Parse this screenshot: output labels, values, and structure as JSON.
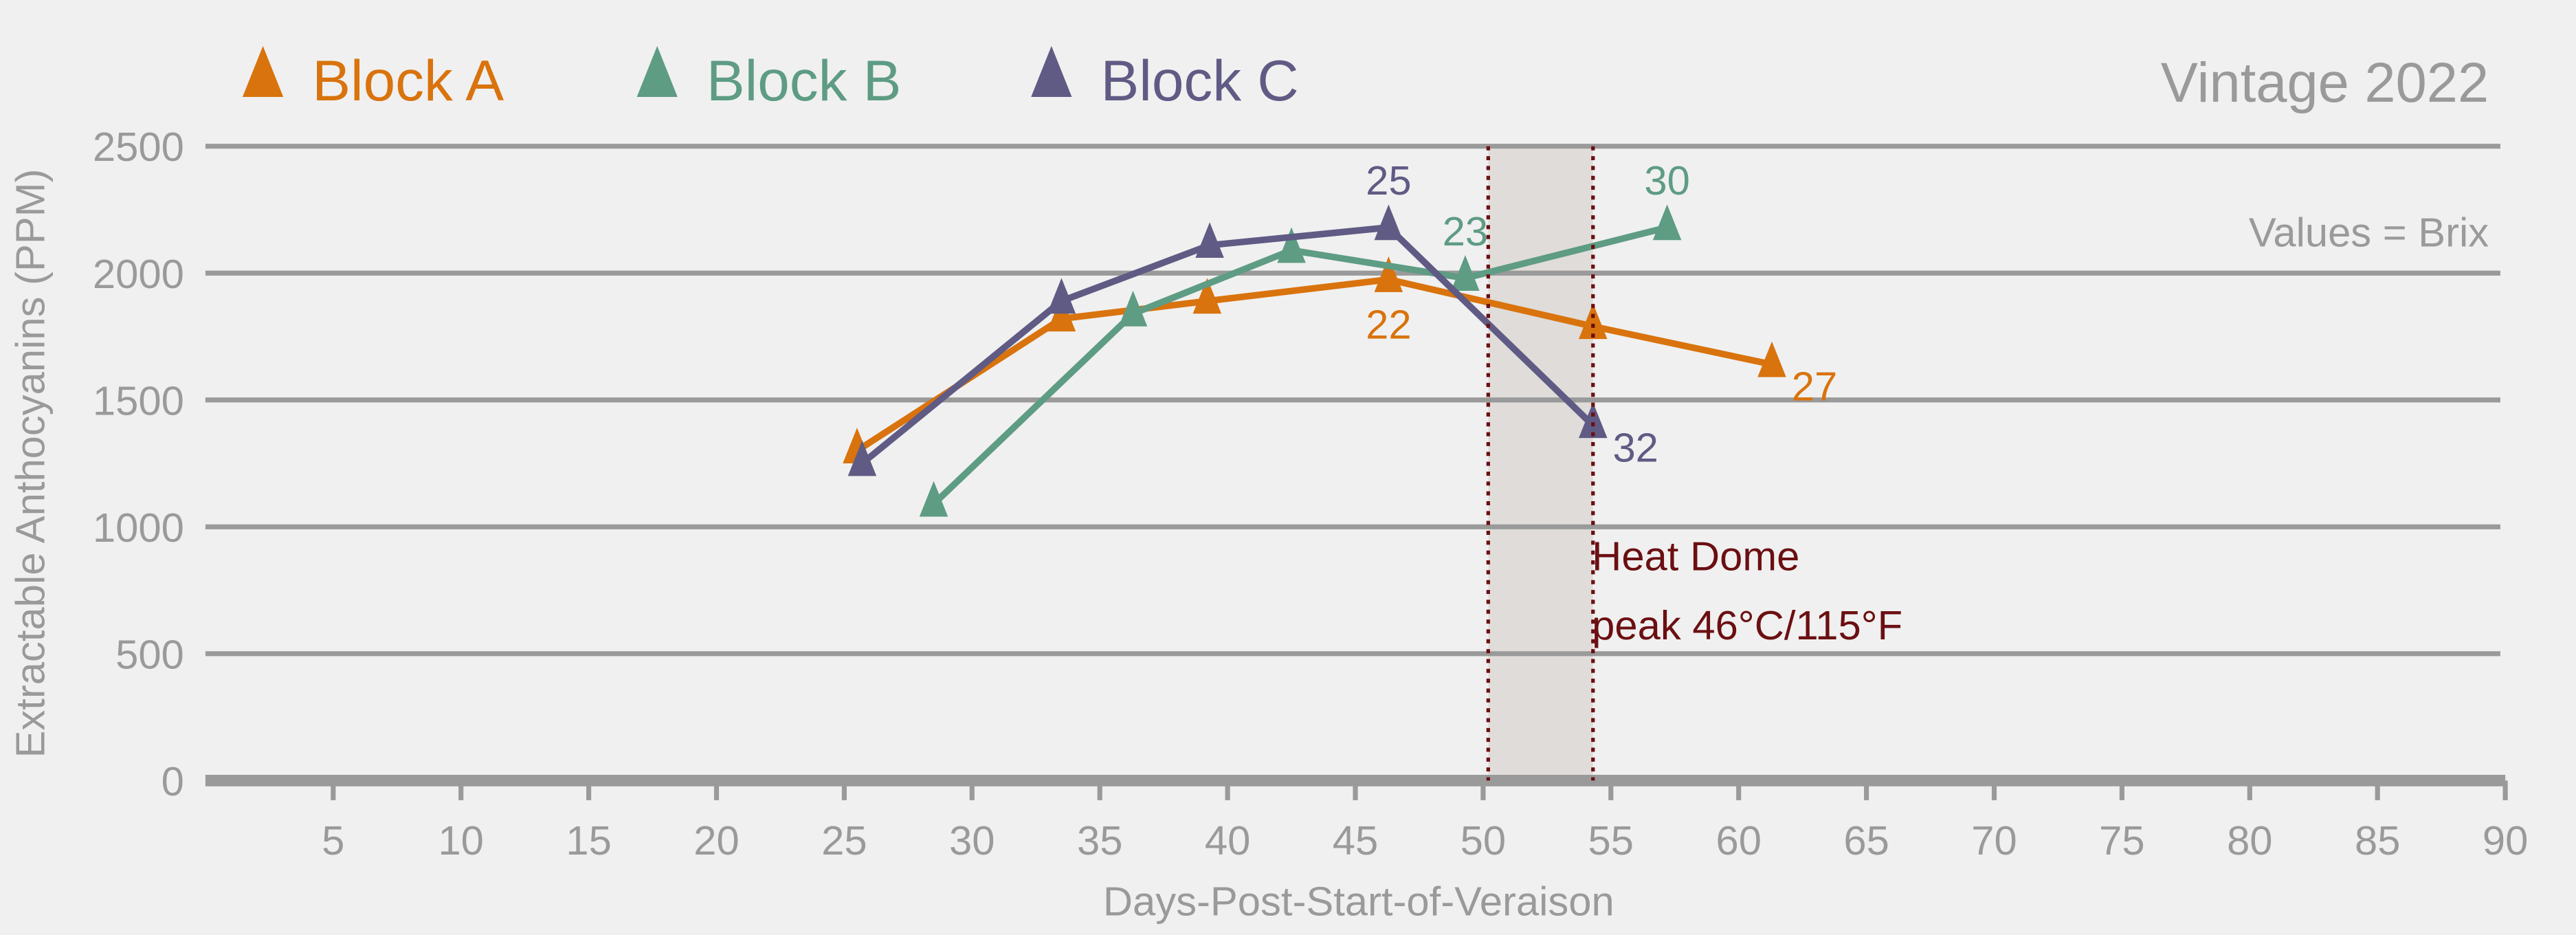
{
  "chart_data": {
    "type": "line",
    "title": "Vintage 2022",
    "subtitle": "Values = Brix",
    "xlabel": "Days-Post-Start-of-Veraison",
    "ylabel": "Extractable Anthocyanins (PPM)",
    "xlim": [
      0,
      90
    ],
    "ylim": [
      0,
      2500
    ],
    "x_ticks": [
      5,
      10,
      15,
      20,
      25,
      30,
      35,
      40,
      45,
      50,
      55,
      60,
      65,
      70,
      75,
      80,
      85,
      90
    ],
    "y_ticks": [
      0,
      500,
      1000,
      1500,
      2000,
      2500
    ],
    "grid": "horizontal",
    "legend_placement": "top-left",
    "series": [
      {
        "name": "Block A",
        "color": "#D9730D",
        "points": [
          [
            25.5,
            1300
          ],
          [
            33.5,
            1820
          ],
          [
            39.2,
            1890
          ],
          [
            46.3,
            1975
          ],
          [
            54.3,
            1790
          ],
          [
            61.3,
            1640
          ]
        ],
        "labels": [
          {
            "index": 3,
            "text": "22",
            "pos": "below"
          },
          {
            "index": 5,
            "text": "27",
            "pos": "right"
          }
        ]
      },
      {
        "name": "Block B",
        "color": "#5E9C84",
        "points": [
          [
            28.5,
            1090
          ],
          [
            36.3,
            1840
          ],
          [
            42.5,
            2090
          ],
          [
            49.3,
            1980
          ],
          [
            57.2,
            2180
          ]
        ],
        "labels": [
          {
            "index": 3,
            "text": "23",
            "pos": "above"
          },
          {
            "index": 4,
            "text": "30",
            "pos": "above"
          }
        ]
      },
      {
        "name": "Block C",
        "color": "#5F5B84",
        "points": [
          [
            25.7,
            1250
          ],
          [
            33.5,
            1890
          ],
          [
            39.3,
            2110
          ],
          [
            46.3,
            2180
          ],
          [
            54.3,
            1400
          ]
        ],
        "labels": [
          {
            "index": 3,
            "text": "25",
            "pos": "above"
          },
          {
            "index": 4,
            "text": "32",
            "pos": "right"
          }
        ]
      }
    ],
    "annotation": {
      "band_x": [
        50.2,
        54.3
      ],
      "line1": "Heat Dome",
      "line2": "peak 46°C/115°F",
      "color": "#6B0F12"
    }
  }
}
